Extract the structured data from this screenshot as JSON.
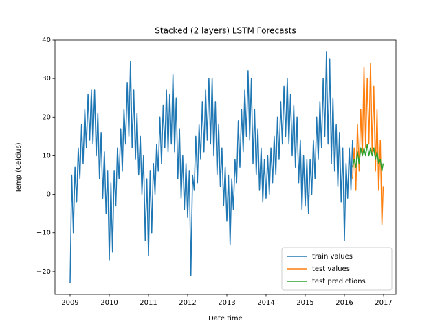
{
  "chart_data": {
    "type": "line",
    "title": "Stacked (2 layers) LSTM Forecasts",
    "x_label": "Date time",
    "y_label": "Temp (Celcius)",
    "xlim": [
      2008.614,
      2017.316
    ],
    "ylim": [
      -25.9,
      40
    ],
    "xticks": [
      2009,
      2010,
      2011,
      2012,
      2013,
      2014,
      2015,
      2016,
      2017
    ],
    "yticks": [
      {
        "value": -20,
        "label": "−20"
      },
      {
        "value": -10,
        "label": "−10"
      },
      0,
      10,
      20,
      30,
      40
    ],
    "legend": "lower right",
    "series": [
      {
        "name": "train values",
        "color": "#1f77b4",
        "x": [
          2009.0,
          2009.042,
          2009.083,
          2009.125,
          2009.167,
          2009.208,
          2009.25,
          2009.292,
          2009.333,
          2009.375,
          2009.417,
          2009.458,
          2009.5,
          2009.542,
          2009.583,
          2009.625,
          2009.667,
          2009.708,
          2009.75,
          2009.792,
          2009.833,
          2009.875,
          2009.917,
          2009.958,
          2010.0,
          2010.042,
          2010.083,
          2010.125,
          2010.167,
          2010.208,
          2010.25,
          2010.292,
          2010.333,
          2010.375,
          2010.417,
          2010.458,
          2010.5,
          2010.542,
          2010.583,
          2010.625,
          2010.667,
          2010.708,
          2010.75,
          2010.792,
          2010.833,
          2010.875,
          2010.917,
          2010.958,
          2011.0,
          2011.042,
          2011.083,
          2011.125,
          2011.167,
          2011.208,
          2011.25,
          2011.292,
          2011.333,
          2011.375,
          2011.417,
          2011.458,
          2011.5,
          2011.542,
          2011.583,
          2011.625,
          2011.667,
          2011.708,
          2011.75,
          2011.792,
          2011.833,
          2011.875,
          2011.917,
          2011.958,
          2012.0,
          2012.042,
          2012.083,
          2012.125,
          2012.167,
          2012.208,
          2012.25,
          2012.292,
          2012.333,
          2012.375,
          2012.417,
          2012.458,
          2012.5,
          2012.542,
          2012.583,
          2012.625,
          2012.667,
          2012.708,
          2012.75,
          2012.792,
          2012.833,
          2012.875,
          2012.917,
          2012.958,
          2013.0,
          2013.042,
          2013.083,
          2013.125,
          2013.167,
          2013.208,
          2013.25,
          2013.292,
          2013.333,
          2013.375,
          2013.417,
          2013.458,
          2013.5,
          2013.542,
          2013.583,
          2013.625,
          2013.667,
          2013.708,
          2013.75,
          2013.792,
          2013.833,
          2013.875,
          2013.917,
          2013.958,
          2014.0,
          2014.042,
          2014.083,
          2014.125,
          2014.167,
          2014.208,
          2014.25,
          2014.292,
          2014.333,
          2014.375,
          2014.417,
          2014.458,
          2014.5,
          2014.542,
          2014.583,
          2014.625,
          2014.667,
          2014.708,
          2014.75,
          2014.792,
          2014.833,
          2014.875,
          2014.917,
          2014.958,
          2015.0,
          2015.042,
          2015.083,
          2015.125,
          2015.167,
          2015.208,
          2015.25,
          2015.292,
          2015.333,
          2015.375,
          2015.417,
          2015.458,
          2015.5,
          2015.542,
          2015.583,
          2015.625,
          2015.667,
          2015.708,
          2015.75,
          2015.792,
          2015.833,
          2015.875,
          2015.917,
          2015.958,
          2016.0,
          2016.042,
          2016.083,
          2016.125,
          2016.167,
          2016.208
        ],
        "values": [
          -23,
          5,
          -10,
          7,
          -2,
          12,
          4,
          18,
          8,
          22,
          12,
          26,
          14,
          27,
          13,
          27,
          10,
          21,
          4,
          16,
          -1,
          11,
          -5,
          6,
          -17,
          3,
          -15,
          6,
          -3,
          12,
          4,
          17,
          6,
          22,
          13,
          29,
          15,
          34.5,
          12,
          27,
          9,
          21,
          5,
          15,
          0,
          10,
          -12,
          4,
          -16,
          6,
          -10,
          8,
          0,
          13,
          6,
          20,
          8,
          23,
          12,
          27,
          11,
          26,
          13,
          31,
          11,
          25,
          4,
          17,
          -1,
          10,
          -4,
          8,
          -6,
          6,
          -21,
          5,
          1,
          15,
          3,
          18,
          9,
          24,
          11,
          27,
          14,
          30,
          13,
          30,
          10,
          24,
          5,
          18,
          2,
          12,
          -3,
          7,
          -7,
          5,
          -13,
          4,
          -4,
          9,
          3,
          19,
          7,
          22,
          11,
          27,
          15,
          32,
          14,
          30,
          8,
          22,
          5,
          17,
          1,
          12,
          -2,
          9,
          -1,
          10,
          0,
          12,
          3,
          15,
          5,
          20,
          9,
          24,
          13,
          28,
          15,
          30,
          13,
          26,
          10,
          23,
          7,
          20,
          3,
          14,
          -4,
          10,
          -3,
          9,
          -5,
          9,
          0,
          14,
          4,
          20,
          9,
          24,
          12,
          30,
          15,
          37,
          13,
          35,
          8,
          25,
          6,
          18,
          2,
          16,
          -2,
          12,
          -12,
          8,
          -1,
          12,
          1,
          14
        ]
      },
      {
        "name": "test values",
        "color": "#ff7f0e",
        "x": [
          2016.208,
          2016.25,
          2016.292,
          2016.333,
          2016.375,
          2016.417,
          2016.458,
          2016.5,
          2016.542,
          2016.583,
          2016.625,
          2016.667,
          2016.708,
          2016.75,
          2016.792,
          2016.833,
          2016.875,
          2016.917,
          2016.958,
          2016.99
        ],
        "values": [
          4,
          12,
          1,
          18,
          6,
          22,
          10,
          33,
          12,
          30,
          13,
          34,
          11,
          28,
          6,
          22,
          1,
          14,
          -8,
          2
        ]
      },
      {
        "name": "test predictions",
        "color": "#2ca02c",
        "x": [
          2016.208,
          2016.25,
          2016.292,
          2016.333,
          2016.375,
          2016.417,
          2016.458,
          2016.5,
          2016.542,
          2016.583,
          2016.625,
          2016.667,
          2016.708,
          2016.75,
          2016.792,
          2016.833,
          2016.875,
          2016.917,
          2016.958,
          2016.99
        ],
        "values": [
          7,
          9,
          7,
          11,
          8,
          12,
          10,
          12,
          10,
          13,
          10,
          12,
          10,
          12,
          9,
          11,
          8,
          9,
          6,
          8
        ]
      }
    ]
  }
}
